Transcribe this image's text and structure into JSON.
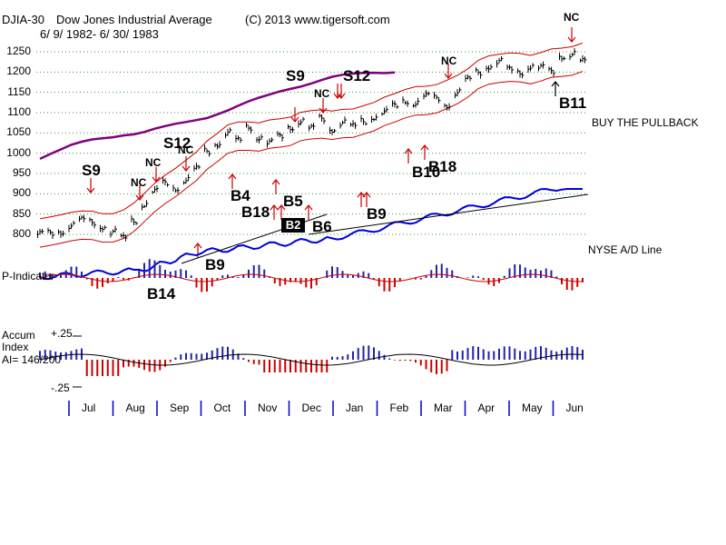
{
  "header": {
    "symbol": "DJIA-30",
    "name": "Dow Jones Industrial Average",
    "copyright": "(C) 2013 www.tigersoft.com",
    "date_range": "6/ 9/ 1982- 6/ 30/ 1983"
  },
  "labels": {
    "buy_pullback": "BUY THE PULLBACK",
    "ad_line": "NYSE A/D Line",
    "p_indicator": "P-Indicator",
    "accum_1": "Accum",
    "accum_2": "Index",
    "accum_ai": "AI= 146/200",
    "accum_top": "+.25",
    "accum_bottom": "-.25"
  },
  "signals": {
    "s9_a": "S9",
    "s12_a": "S12",
    "nc_a": "NC",
    "nc_b": "NC",
    "nc_c": "NC",
    "s9_b": "S9",
    "s12_b": "S12",
    "nc_d": "NC",
    "nc_e": "NC",
    "b4": "B4",
    "b18_a": "B18",
    "b5": "B5",
    "b6": "B6",
    "b9_a": "B9",
    "b9_b": "B9",
    "b14": "B14",
    "b10": "B10",
    "b18_b": "B18",
    "b11": "B11",
    "b22": "B2"
  },
  "colors": {
    "price": "#000000",
    "band": "#cc0000",
    "ma": "#800080",
    "ad": "#0000dd",
    "bar_pos": "#2222aa",
    "bar_neg": "#cc0000"
  },
  "chart_data": {
    "type": "line",
    "title": "Dow Jones Industrial Average",
    "subtitle": "6/ 9/ 1982- 6/ 30/ 1983",
    "y_ticks": [
      "1250",
      "1200",
      "1150",
      "1100",
      "1050",
      "1000",
      "950",
      "900",
      "850",
      "800"
    ],
    "ylim": [
      800,
      1250
    ],
    "months": [
      "Jul",
      "Aug",
      "Sep",
      "Oct",
      "Nov",
      "Dec",
      "Jan",
      "Feb",
      "Mar",
      "Apr",
      "May",
      "Jun"
    ],
    "series": [
      {
        "name": "DJIA close (approx)",
        "x": [
          0,
          2,
          4,
          6,
          8,
          10,
          12,
          14,
          16,
          18,
          20,
          22,
          24,
          26,
          28,
          30,
          32,
          34,
          36,
          38,
          40,
          42,
          44,
          46,
          48,
          50,
          52
        ],
        "values": [
          800,
          802,
          808,
          822,
          834,
          830,
          820,
          805,
          790,
          835,
          875,
          905,
          925,
          915,
          935,
          960,
          1005,
          1025,
          1050,
          1030,
          1065,
          1040,
          1025,
          1040,
          1065,
          1080,
          1060
        ]
      },
      {
        "name": "DJIA close (approx, cont.)",
        "x": [
          54,
          56,
          58,
          60,
          62,
          64,
          66,
          68,
          70,
          72,
          74,
          76,
          78,
          80,
          82,
          84,
          86,
          88,
          90,
          92,
          94,
          96,
          98,
          100,
          102,
          104
        ],
        "values": [
          1085,
          1060,
          1075,
          1065,
          1080,
          1090,
          1100,
          1115,
          1130,
          1125,
          1140,
          1135,
          1120,
          1150,
          1180,
          1200,
          1215,
          1225,
          1205,
          1200,
          1215,
          1210,
          1200,
          1240,
          1245,
          1225
        ]
      }
    ],
    "accum_range": [
      -0.25,
      0.25
    ]
  }
}
